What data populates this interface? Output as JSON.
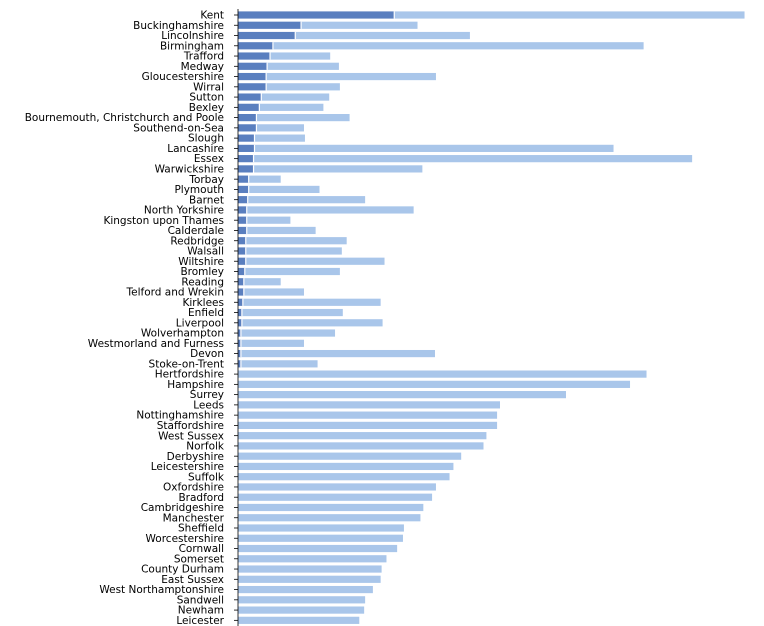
{
  "colors": {
    "dark": "#5a7fbf",
    "light": "#a9c6ea",
    "axis": "#000000"
  },
  "chart_data": {
    "type": "bar",
    "orientation": "horizontal",
    "stacked": true,
    "grid": false,
    "categories": [
      "Kent",
      "Buckinghamshire",
      "Lincolnshire",
      "Birmingham",
      "Trafford",
      "Medway",
      "Gloucestershire",
      "Wirral",
      "Sutton",
      "Bexley",
      "Bournemouth, Christchurch and Poole",
      "Southend-on-Sea",
      "Slough",
      "Lancashire",
      "Essex",
      "Warwickshire",
      "Torbay",
      "Plymouth",
      "Barnet",
      "North Yorkshire",
      "Kingston upon Thames",
      "Calderdale",
      "Redbridge",
      "Walsall",
      "Wiltshire",
      "Bromley",
      "Reading",
      "Telford and Wrekin",
      "Kirklees",
      "Enfield",
      "Liverpool",
      "Wolverhampton",
      "Westmorland and Furness",
      "Devon",
      "Stoke-on-Trent",
      "Hertfordshire",
      "Hampshire",
      "Surrey",
      "Leeds",
      "Nottinghamshire",
      "Staffordshire",
      "West Sussex",
      "Norfolk",
      "Derbyshire",
      "Leicestershire",
      "Suffolk",
      "Oxfordshire",
      "Bradford",
      "Cambridgeshire",
      "Manchester",
      "Sheffield",
      "Worcestershire",
      "Cornwall",
      "Somerset",
      "County Durham",
      "East Sussex",
      "West Northamptonshire",
      "Sandwell",
      "Newham",
      "Leicester"
    ],
    "series": [
      {
        "values": [
          161,
          65,
          59,
          36,
          33,
          30,
          29,
          29,
          24,
          22,
          19,
          19,
          17,
          17,
          16,
          16,
          11,
          11,
          10,
          9,
          9,
          9,
          8,
          8,
          8,
          7,
          6,
          6,
          5,
          4,
          4,
          3,
          3,
          3,
          3,
          0,
          0,
          0,
          0,
          0,
          0,
          0,
          0,
          0,
          0,
          0,
          0,
          0,
          0,
          0,
          0,
          0,
          0,
          0,
          0,
          0,
          0,
          0,
          0,
          0
        ]
      },
      {
        "values": [
          361,
          120,
          180,
          382,
          62,
          74,
          175,
          76,
          70,
          66,
          96,
          49,
          52,
          370,
          452,
          174,
          33,
          73,
          121,
          172,
          45,
          71,
          104,
          99,
          143,
          98,
          38,
          62,
          142,
          104,
          145,
          97,
          65,
          200,
          79,
          421,
          404,
          338,
          270,
          267,
          267,
          256,
          253,
          230,
          222,
          218,
          204,
          200,
          191,
          188,
          171,
          170,
          164,
          153,
          148,
          147,
          139,
          131,
          130,
          125
        ]
      }
    ],
    "xlim": [
      0,
      540
    ]
  }
}
